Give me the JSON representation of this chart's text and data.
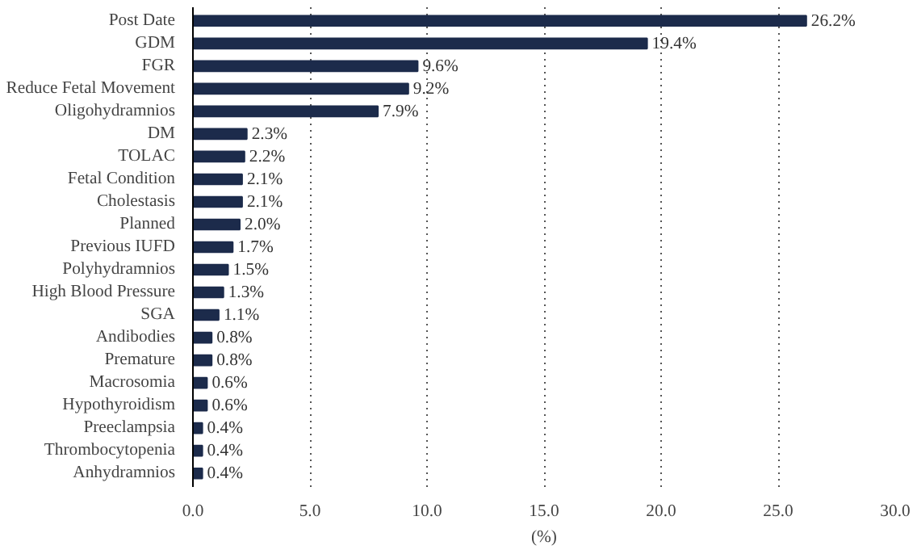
{
  "chart_data": {
    "type": "bar",
    "orientation": "horizontal",
    "xlabel": "(%)",
    "categories": [
      "Post Date",
      "GDM",
      "FGR",
      "Reduce Fetal Movement",
      "Oligohydramnios",
      "DM",
      "TOLAC",
      "Fetal Condition",
      "Cholestasis",
      "Planned",
      "Previous IUFD",
      "Polyhydramnios",
      "High Blood Pressure",
      "SGA",
      "Andibodies",
      "Premature",
      "Macrosomia",
      "Hypothyroidism",
      "Preeclampsia",
      "Thrombocytopenia",
      "Anhydramnios"
    ],
    "values": [
      26.2,
      19.4,
      9.6,
      9.2,
      7.9,
      2.3,
      2.2,
      2.1,
      2.1,
      2.0,
      1.7,
      1.5,
      1.3,
      1.1,
      0.8,
      0.8,
      0.6,
      0.6,
      0.4,
      0.4,
      0.4
    ],
    "value_labels": [
      "26.2%",
      "19.4%",
      "9.6%",
      "9.2%",
      "7.9%",
      "2.3%",
      "2.2%",
      "2.1%",
      "2.1%",
      "2.0%",
      "1.7%",
      "1.5%",
      "1.3%",
      "1.1%",
      "0.8%",
      "0.8%",
      "0.6%",
      "0.6%",
      "0.4%",
      "0.4%",
      "0.4%"
    ],
    "color": "#1c2b4b",
    "xlim": [
      0,
      30
    ],
    "xticks": [
      {
        "value": 0,
        "label": "0.0"
      },
      {
        "value": 5,
        "label": "5.0"
      },
      {
        "value": 10,
        "label": "10.0"
      },
      {
        "value": 15,
        "label": "15.0"
      },
      {
        "value": 20,
        "label": "20.0"
      },
      {
        "value": 25,
        "label": "25.0"
      },
      {
        "value": 30,
        "label": "30.0"
      }
    ],
    "grid": "x"
  }
}
